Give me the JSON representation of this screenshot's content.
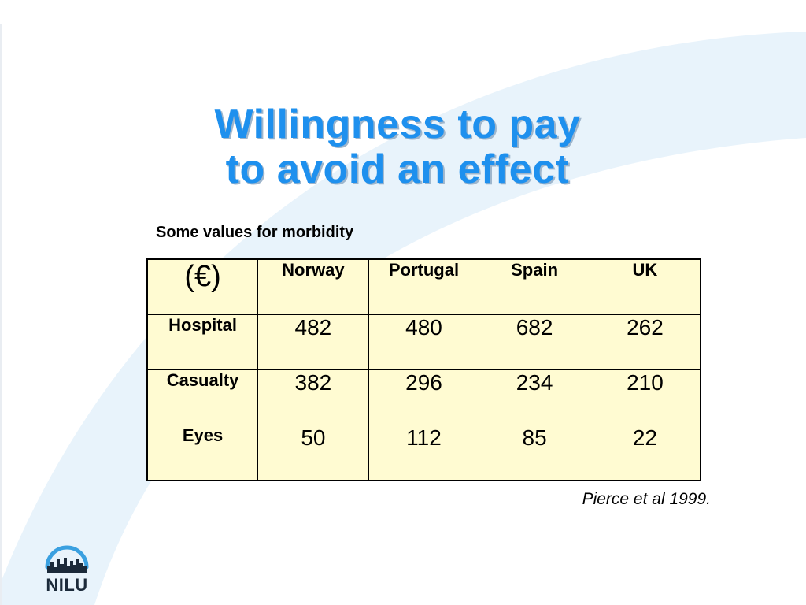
{
  "title": {
    "line1": "Willingness to pay",
    "line2": "to avoid an effect"
  },
  "subtitle": "Some values for morbidity",
  "table": {
    "corner": "(€)",
    "columns": [
      "Norway",
      "Portugal",
      "Spain",
      "UK"
    ],
    "rows": [
      {
        "label": "Hospital",
        "values": [
          "482",
          "480",
          "682",
          "262"
        ]
      },
      {
        "label": "Casualty",
        "values": [
          "382",
          "296",
          "234",
          "210"
        ]
      },
      {
        "label": "Eyes",
        "values": [
          "50",
          "112",
          "85",
          "22"
        ]
      }
    ]
  },
  "citation": "Pierce et al 1999.",
  "logo": {
    "text": "NILU",
    "icon": "city-skyline-arc-icon"
  },
  "colors": {
    "title": "#1e90ee",
    "table_background": "#fffbd2",
    "background_arc": "#e8f3fb",
    "logo_arc": "#3aa0e0"
  }
}
